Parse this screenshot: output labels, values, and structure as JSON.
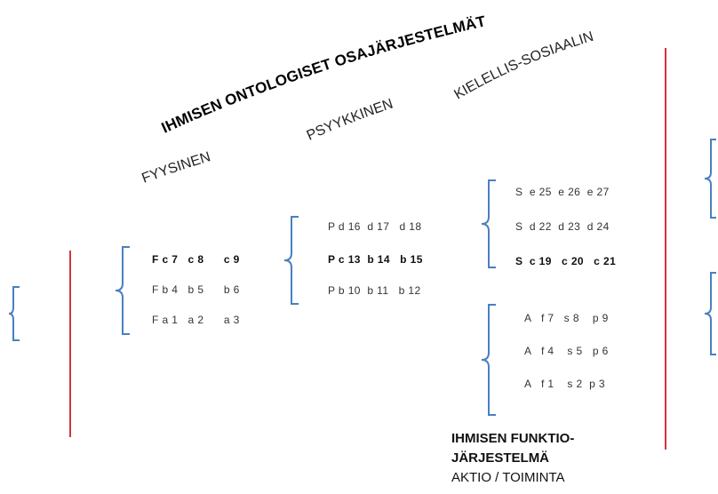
{
  "colors": {
    "bracket": "#4a7fc1",
    "divider": "#d8333a"
  },
  "title": "IHMISEN ONTOLOGISET OSAJÄRJESTELMÄT",
  "headers": {
    "fyysinen": "FYYSINEN",
    "psyykkinen": "PSYYKKINEN",
    "kielellis": "KIELELLIS-SOSIAALINEN"
  },
  "fyysinen_rows": [
    "F c 7   c 8      c 9",
    "F b 4   b 5      b 6",
    "F a 1   a 2      a 3"
  ],
  "psyykkinen_rows": [
    "P d 16  d 17   d 18",
    "P c 13  b 14   b 15",
    "P b 10  b 11   b 12"
  ],
  "sosiaalinen_rows": [
    "S  e 25  e 26  e 27",
    "S  d 22  d 23  d 24",
    "S  c 19   c 20   c 21"
  ],
  "aktio_rows": [
    "A   f 7   s 8    p 9",
    "A   f 4    s 5   p 6",
    "A   f 1    s 2  p 3"
  ],
  "caption": {
    "line1": "IHMISEN FUNKTIO-",
    "line2": "JÄRJESTELMÄ",
    "line3": "AKTIO / TOIMINTA"
  }
}
